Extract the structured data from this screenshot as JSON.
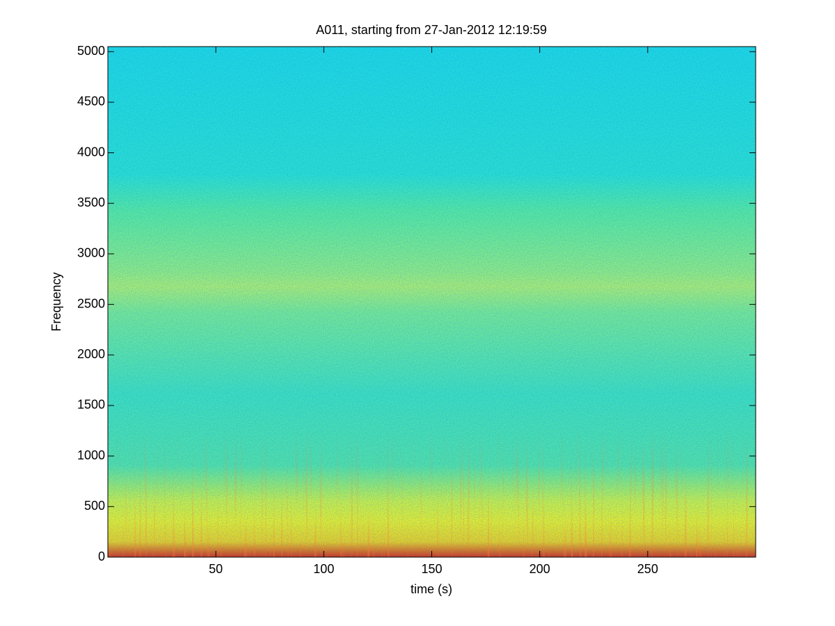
{
  "chart_data": {
    "type": "spectrogram",
    "title": "A011, starting from 27-Jan-2012 12:19:59",
    "x_label": "time (s)",
    "y_label": "Frequency",
    "xlim": [
      0,
      300
    ],
    "xticks": [
      50,
      100,
      150,
      200,
      250
    ],
    "ylim": [
      0,
      5050
    ],
    "yticks": [
      0,
      500,
      1000,
      1500,
      2000,
      2500,
      3000,
      3500,
      4000,
      4500,
      5000
    ]
  }
}
